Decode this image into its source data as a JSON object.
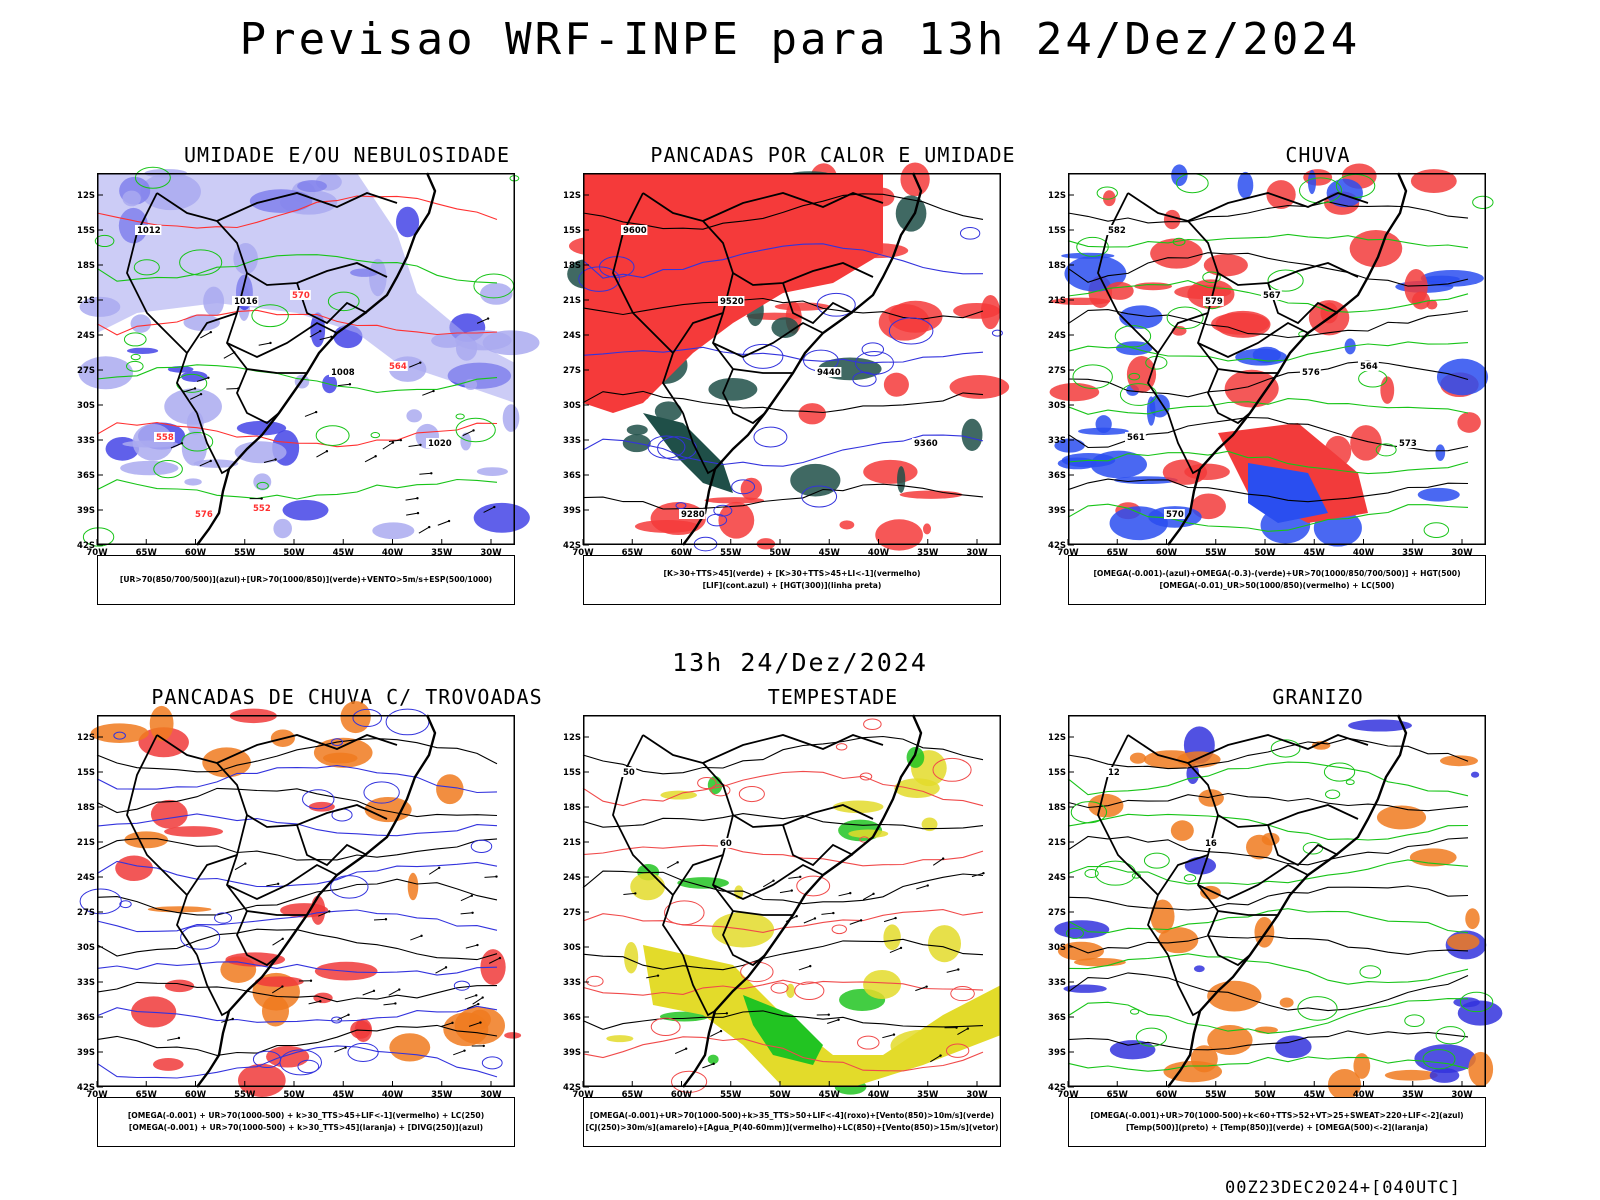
{
  "header": {
    "title": "Previsao WRF-INPE  para 13h 24/Dez/2024",
    "mid_time": "13h 24/Dez/2024",
    "footer": "00Z23DEC2024+[040UTC]"
  },
  "axes": {
    "lat_labels": [
      "12S",
      "15S",
      "18S",
      "21S",
      "24S",
      "27S",
      "30S",
      "33S",
      "36S",
      "39S",
      "42S"
    ],
    "lon_labels": [
      "70W",
      "65W",
      "60W",
      "55W",
      "50W",
      "45W",
      "40W",
      "35W",
      "30W"
    ]
  },
  "panels": [
    {
      "title": "UMIDADE E/OU NEBULOSIDADE",
      "legend": [
        "[UR>70(850/700/500)](azul)+[UR>70(1000/850)](verde)+VENTO>5m/s+ESP(500/1000)"
      ],
      "contour_labels": [
        "1012",
        "1016",
        "1008",
        "1020",
        "576",
        "570",
        "564",
        "558",
        "552"
      ],
      "colors": {
        "fill1": "#aaaaf0",
        "fill2": "#4444e6",
        "line1": "#18c418",
        "line2": "#ff3030"
      }
    },
    {
      "title": "PANCADAS POR CALOR E UMIDADE",
      "legend": [
        "[K>30+TTS>45](verde) + [K>30+TTS>45+LI<-1](vermelho)",
        "[LIF](cont.azul) + [HGT(300)](linha preta)"
      ],
      "contour_labels": [
        "9600",
        "9520",
        "9440",
        "9360",
        "9280"
      ],
      "colors": {
        "fill1": "#f53a3a",
        "fill2": "#1f4f48",
        "line1": "#3333dd",
        "line2": "#000000"
      }
    },
    {
      "title": "CHUVA",
      "legend": [
        "[OMEGA(-0.001)-(azul)+OMEGA(-0.3)-(verde)+UR>70(1000/850/700/500)] + HGT(500)",
        "[OMEGA(-0.01)_UR>50(1000/850)(vermelho) + LC(500)"
      ],
      "contour_labels": [
        "582",
        "579",
        "576",
        "573",
        "570",
        "567",
        "564",
        "561"
      ],
      "colors": {
        "fill1": "#f23b3b",
        "fill2": "#2a4ef0",
        "line1": "#18c418",
        "line2": "#000000"
      }
    },
    {
      "title": "PANCADAS DE CHUVA C/ TROVOADAS",
      "legend": [
        "[OMEGA(-0.001) + UR>70(1000-500) + k>30_TTS>45+LIF<-1](vermelho) + LC(250)",
        "[OMEGA(-0.001) + UR>70(1000-500) + k>30_TTS>45](laranja) + [DIVG(250)](azul)"
      ],
      "contour_labels": [],
      "colors": {
        "fill1": "#f03a3a",
        "fill2": "#f07a1e",
        "line1": "#3333dd",
        "line2": "#000000"
      }
    },
    {
      "title": "TEMPESTADE",
      "legend": [
        "[OMEGA(-0.001)+UR>70(1000-500)+k>35_TTS>50+LIF<-4](roxo)+[Vento(850)>10m/s](verde)",
        "[CJ(250)>30m/s](amarelo)+[Agua_P(40-60mm)](vermelho)+LC(850)+[Vento(850)>15m/s](vetor)"
      ],
      "contour_labels": [
        "50",
        "60"
      ],
      "colors": {
        "fill1": "#e3db2a",
        "fill2": "#22c422",
        "line1": "#f04a4a",
        "line2": "#000000"
      }
    },
    {
      "title": "GRANIZO",
      "legend": [
        "[OMEGA(-0.001)+UR>70(1000-500)+k<60+TTS>52+VT>25+SWEAT>220+LIF<-2](azul)",
        "[Temp(500)](preto) + [Temp(850)](verde) + [OMEGA(500)<-2](laranja)"
      ],
      "contour_labels": [
        "12",
        "16"
      ],
      "colors": {
        "fill1": "#f07a1e",
        "fill2": "#3333dd",
        "line1": "#18c418",
        "line2": "#000000"
      }
    }
  ]
}
